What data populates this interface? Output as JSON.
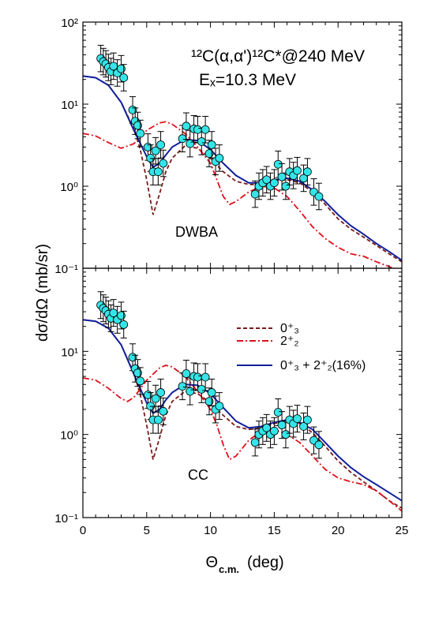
{
  "figure": {
    "ylabel": "dσ/dΩ (mb/sr)",
    "xlabel_main": "Θ",
    "xlabel_sub": "c.m.",
    "xlabel_unit": "(deg)"
  },
  "colors": {
    "axis": "#000000",
    "data_fill": "#33e5e8",
    "curve_0plus3": "#7a1b1b",
    "curve_2plus2": "#e0101a",
    "curve_combined": "#10209c"
  },
  "chart_data": [
    {
      "type": "scatter",
      "panel": "top",
      "title_reaction": "¹²C(α,α')¹²C*@240 MeV",
      "title_energy": "Eₓ=10.3 MeV",
      "annotation": "DWBA",
      "xlim": [
        0,
        25
      ],
      "ylim": [
        0.1,
        100
      ],
      "yscale": "log",
      "x_ticks": [
        "0",
        "5",
        "10",
        "15",
        "20",
        "25"
      ],
      "y_ticks": [
        "10⁻¹",
        "10⁰",
        "10¹",
        "10²"
      ],
      "data": {
        "x": [
          1.4,
          1.6,
          1.8,
          2.0,
          2.2,
          2.4,
          2.7,
          3.0,
          3.2,
          3.9,
          4.1,
          4.3,
          4.5,
          5.1,
          5.3,
          5.5,
          5.7,
          5.9,
          6.1,
          6.3,
          7.8,
          8.1,
          8.4,
          8.7,
          9.0,
          9.3,
          9.6,
          9.9,
          10.1,
          10.4,
          10.7,
          13.5,
          13.8,
          14.1,
          14.4,
          14.7,
          15.0,
          15.3,
          15.6,
          15.9,
          16.2,
          16.5,
          16.8,
          17.3,
          17.6,
          18.1,
          18.5
        ],
        "y": [
          36,
          33,
          31,
          28,
          25,
          29,
          24,
          27,
          21,
          8.5,
          6.2,
          5.5,
          4.4,
          3.0,
          2.2,
          1.5,
          2.7,
          1.5,
          3.2,
          1.9,
          3.8,
          5.4,
          3.3,
          5.0,
          4.9,
          3.5,
          4.9,
          2.5,
          3.2,
          2.0,
          2.2,
          0.8,
          1.0,
          1.1,
          1.2,
          1.0,
          1.1,
          1.85,
          1.3,
          1.0,
          1.5,
          1.35,
          1.55,
          1.25,
          1.5,
          0.85,
          0.75
        ],
        "err_factor": 1.45
      },
      "series": [
        {
          "key": "curve_0plus3",
          "dash": "5,3",
          "points": [
            [
              0,
              22
            ],
            [
              1,
              21
            ],
            [
              2,
              17
            ],
            [
              3,
              10.5
            ],
            [
              4,
              5
            ],
            [
              4.5,
              2.8
            ],
            [
              5,
              1.2
            ],
            [
              5.5,
              0.45
            ],
            [
              6,
              0.8
            ],
            [
              6.5,
              1.5
            ],
            [
              7,
              2.2
            ],
            [
              8,
              3.1
            ],
            [
              9,
              2.9
            ],
            [
              10,
              2.2
            ],
            [
              11,
              1.5
            ],
            [
              12,
              1.15
            ],
            [
              13,
              1.05
            ],
            [
              14,
              1.05
            ],
            [
              15,
              1.15
            ],
            [
              16,
              1.2
            ],
            [
              17,
              1.1
            ],
            [
              18,
              0.85
            ],
            [
              19,
              0.6
            ],
            [
              20,
              0.4
            ],
            [
              21,
              0.3
            ],
            [
              22,
              0.24
            ],
            [
              23,
              0.19
            ],
            [
              24,
              0.15
            ],
            [
              25,
              0.12
            ]
          ]
        },
        {
          "key": "curve_2plus2",
          "dash": "8,3,2,3",
          "points": [
            [
              0,
              4.4
            ],
            [
              1,
              4.1
            ],
            [
              2,
              3.4
            ],
            [
              3,
              2.9
            ],
            [
              4,
              3.3
            ],
            [
              5,
              4.8
            ],
            [
              6,
              5.9
            ],
            [
              6.5,
              6.1
            ],
            [
              7,
              5.7
            ],
            [
              8,
              4.4
            ],
            [
              9,
              3.0
            ],
            [
              10,
              1.9
            ],
            [
              10.5,
              1.2
            ],
            [
              11,
              0.75
            ],
            [
              11.5,
              0.6
            ],
            [
              12,
              0.65
            ],
            [
              13,
              0.85
            ],
            [
              14,
              1.0
            ],
            [
              15,
              0.95
            ],
            [
              16,
              0.75
            ],
            [
              17,
              0.5
            ],
            [
              18,
              0.32
            ],
            [
              19,
              0.23
            ],
            [
              20,
              0.18
            ],
            [
              21,
              0.15
            ],
            [
              22,
              0.14
            ],
            [
              23,
              0.12
            ],
            [
              24,
              0.105
            ],
            [
              24.3,
              0.1
            ]
          ]
        },
        {
          "key": "curve_combined",
          "dash": "",
          "points": [
            [
              0,
              22
            ],
            [
              1,
              21
            ],
            [
              2,
              17
            ],
            [
              3,
              10.5
            ],
            [
              4,
              4.8
            ],
            [
              5,
              2.3
            ],
            [
              5.5,
              1.7
            ],
            [
              6,
              1.9
            ],
            [
              6.5,
              2.4
            ],
            [
              7,
              3.0
            ],
            [
              8,
              3.7
            ],
            [
              9,
              3.6
            ],
            [
              10,
              2.8
            ],
            [
              11,
              1.9
            ],
            [
              12,
              1.35
            ],
            [
              13,
              1.1
            ],
            [
              14,
              1.1
            ],
            [
              15,
              1.2
            ],
            [
              16,
              1.25
            ],
            [
              17,
              1.15
            ],
            [
              18,
              0.9
            ],
            [
              19,
              0.65
            ],
            [
              20,
              0.45
            ],
            [
              21,
              0.33
            ],
            [
              22,
              0.26
            ],
            [
              23,
              0.2
            ],
            [
              24,
              0.16
            ],
            [
              25,
              0.125
            ]
          ]
        }
      ]
    },
    {
      "type": "scatter",
      "panel": "bottom",
      "annotation": "CC",
      "xlim": [
        0,
        25
      ],
      "ylim": [
        0.1,
        100
      ],
      "yscale": "log",
      "x_ticks": [
        "0",
        "5",
        "10",
        "15",
        "20",
        "25"
      ],
      "y_ticks": [
        "10⁻¹",
        "10⁰",
        "10¹"
      ],
      "legend": [
        "0⁺₃",
        "2⁺₂",
        "0⁺₃ + 2⁺₂(16%)"
      ],
      "legend_position": "top-right",
      "data": {
        "x": [
          1.4,
          1.6,
          1.8,
          2.0,
          2.2,
          2.4,
          2.7,
          3.0,
          3.2,
          3.9,
          4.1,
          4.3,
          4.5,
          5.1,
          5.3,
          5.5,
          5.7,
          5.9,
          6.1,
          6.3,
          7.8,
          8.1,
          8.4,
          8.7,
          9.0,
          9.3,
          9.6,
          9.9,
          10.1,
          10.4,
          10.7,
          13.5,
          13.8,
          14.1,
          14.4,
          14.7,
          15.0,
          15.3,
          15.6,
          15.9,
          16.2,
          16.5,
          16.8,
          17.3,
          17.6,
          18.1,
          18.5
        ],
        "y": [
          36,
          33,
          31,
          28,
          25,
          29,
          24,
          27,
          21,
          8.5,
          6.2,
          5.5,
          4.4,
          3.0,
          2.2,
          1.5,
          2.7,
          1.5,
          3.2,
          1.9,
          3.8,
          5.4,
          3.3,
          5.0,
          4.9,
          3.5,
          4.9,
          2.5,
          3.2,
          2.0,
          2.2,
          0.8,
          1.0,
          1.1,
          1.2,
          1.0,
          1.1,
          1.85,
          1.3,
          1.0,
          1.5,
          1.35,
          1.55,
          1.25,
          1.5,
          0.85,
          0.75
        ],
        "err_factor": 1.45
      },
      "series": [
        {
          "key": "curve_0plus3",
          "dash": "5,3",
          "points": [
            [
              0,
              24
            ],
            [
              1,
              23
            ],
            [
              2,
              19
            ],
            [
              3,
              12
            ],
            [
              4,
              5.5
            ],
            [
              4.5,
              3.0
            ],
            [
              5,
              1.3
            ],
            [
              5.5,
              0.5
            ],
            [
              6,
              0.9
            ],
            [
              6.5,
              1.7
            ],
            [
              7,
              2.5
            ],
            [
              8,
              3.3
            ],
            [
              9,
              3.1
            ],
            [
              10,
              2.4
            ],
            [
              11,
              1.7
            ],
            [
              12,
              1.25
            ],
            [
              13,
              1.15
            ],
            [
              14,
              1.2
            ],
            [
              15,
              1.35
            ],
            [
              16,
              1.45
            ],
            [
              17,
              1.35
            ],
            [
              18,
              1.05
            ],
            [
              19,
              0.72
            ],
            [
              20,
              0.48
            ],
            [
              21,
              0.35
            ],
            [
              22,
              0.27
            ],
            [
              23,
              0.21
            ],
            [
              24,
              0.16
            ],
            [
              25,
              0.13
            ]
          ]
        },
        {
          "key": "curve_2plus2",
          "dash": "8,3,2,3",
          "points": [
            [
              0,
              4.8
            ],
            [
              1,
              4.5
            ],
            [
              2,
              3.6
            ],
            [
              3,
              2.7
            ],
            [
              3.5,
              2.5
            ],
            [
              4,
              2.8
            ],
            [
              5,
              4.5
            ],
            [
              6,
              6.3
            ],
            [
              6.5,
              6.8
            ],
            [
              7,
              6.5
            ],
            [
              8,
              5.0
            ],
            [
              9,
              3.3
            ],
            [
              10,
              2.0
            ],
            [
              10.5,
              1.3
            ],
            [
              11,
              0.75
            ],
            [
              11.5,
              0.5
            ],
            [
              12,
              0.55
            ],
            [
              13,
              0.85
            ],
            [
              14,
              1.1
            ],
            [
              15,
              1.15
            ],
            [
              16,
              1.0
            ],
            [
              17,
              0.8
            ],
            [
              18,
              0.55
            ],
            [
              19,
              0.38
            ],
            [
              20,
              0.3
            ],
            [
              21,
              0.27
            ],
            [
              22,
              0.25
            ],
            [
              23,
              0.21
            ],
            [
              24,
              0.16
            ],
            [
              25,
              0.12
            ]
          ]
        },
        {
          "key": "curve_combined",
          "dash": "",
          "points": [
            [
              0,
              24
            ],
            [
              1,
              23
            ],
            [
              2,
              19
            ],
            [
              3,
              12
            ],
            [
              4,
              5.3
            ],
            [
              5,
              2.4
            ],
            [
              5.5,
              1.8
            ],
            [
              6,
              2.0
            ],
            [
              6.5,
              2.6
            ],
            [
              7,
              3.2
            ],
            [
              8,
              4.0
            ],
            [
              9,
              3.9
            ],
            [
              10,
              3.1
            ],
            [
              11,
              2.1
            ],
            [
              12,
              1.45
            ],
            [
              13,
              1.2
            ],
            [
              14,
              1.25
            ],
            [
              15,
              1.4
            ],
            [
              16,
              1.5
            ],
            [
              17,
              1.4
            ],
            [
              18,
              1.15
            ],
            [
              19,
              0.8
            ],
            [
              20,
              0.55
            ],
            [
              21,
              0.4
            ],
            [
              22,
              0.31
            ],
            [
              23,
              0.25
            ],
            [
              24,
              0.2
            ],
            [
              25,
              0.16
            ]
          ]
        }
      ]
    }
  ]
}
